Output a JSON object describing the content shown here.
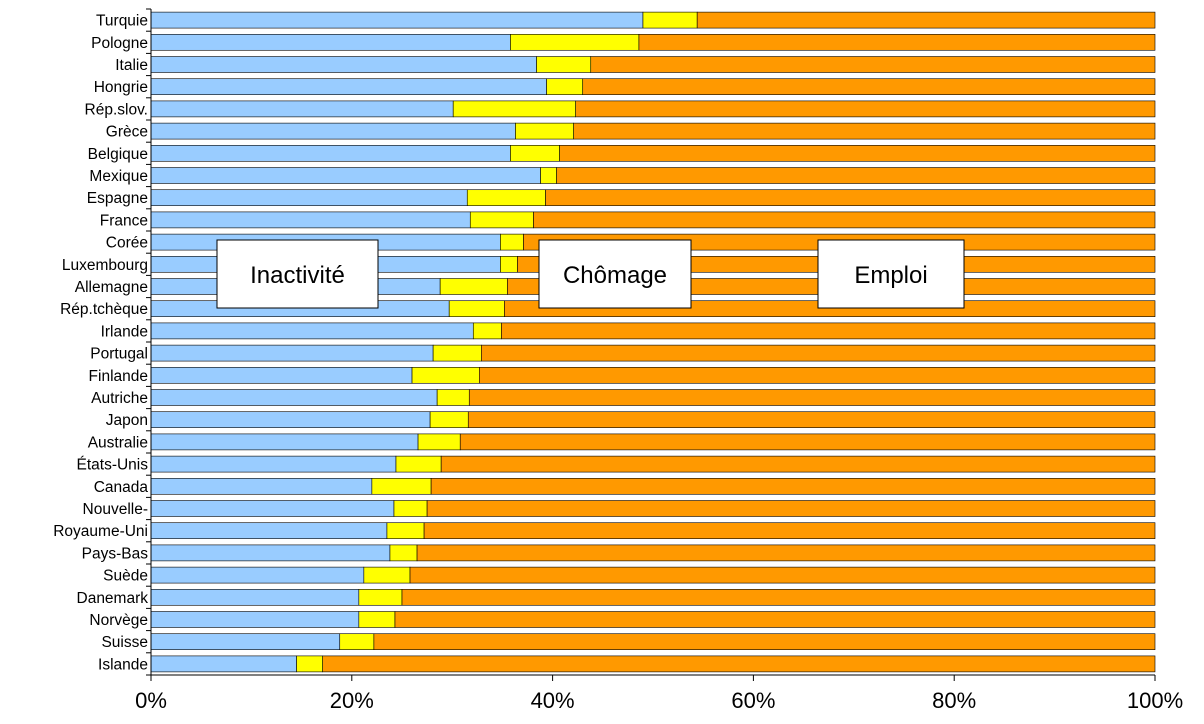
{
  "chart_data": {
    "type": "bar",
    "orientation": "horizontal",
    "stacked": true,
    "percent_stacked": true,
    "categories": [
      "Turquie",
      "Pologne",
      "Italie",
      "Hongrie",
      "Rép.slov.",
      "Grèce",
      "Belgique",
      "Mexique",
      "Espagne",
      "France",
      "Corée",
      "Luxembourg",
      "Allemagne",
      "Rép.tchèque",
      "Irlande",
      "Portugal",
      "Finlande",
      "Autriche",
      "Japon",
      "Australie",
      "États-Unis",
      "Canada",
      "Nouvelle-",
      "Royaume-Uni",
      "Pays-Bas",
      "Suède",
      "Danemark",
      "Norvège",
      "Suisse",
      "Islande"
    ],
    "series": [
      {
        "name": "Inactivité",
        "color": "#99ccff",
        "values": [
          49.0,
          35.8,
          38.4,
          39.4,
          30.1,
          36.3,
          35.8,
          38.8,
          31.5,
          31.8,
          34.8,
          34.8,
          28.8,
          29.7,
          32.1,
          28.1,
          26.0,
          28.5,
          27.8,
          26.6,
          24.4,
          22.0,
          24.2,
          23.5,
          23.8,
          21.2,
          20.7,
          20.7,
          18.8,
          14.5
        ]
      },
      {
        "name": "Chômage",
        "color": "#ffff00",
        "values": [
          5.4,
          12.8,
          5.4,
          3.6,
          12.2,
          5.8,
          4.9,
          1.6,
          7.8,
          6.3,
          2.3,
          1.7,
          6.7,
          5.5,
          2.8,
          4.8,
          6.7,
          3.2,
          3.8,
          4.2,
          4.5,
          5.9,
          3.3,
          3.7,
          2.7,
          4.6,
          4.3,
          3.6,
          3.4,
          2.6
        ]
      },
      {
        "name": "Emploi",
        "color": "#ff9900",
        "values": [
          45.6,
          51.4,
          56.2,
          57.0,
          57.7,
          57.9,
          59.3,
          59.6,
          60.7,
          61.9,
          62.9,
          63.5,
          64.5,
          64.8,
          65.1,
          67.1,
          67.3,
          68.3,
          68.4,
          69.2,
          71.1,
          72.1,
          72.5,
          72.8,
          73.5,
          74.2,
          75.0,
          75.7,
          77.8,
          82.9
        ]
      }
    ],
    "xlim": [
      0,
      100
    ],
    "xticks": [
      "0%",
      "20%",
      "40%",
      "60%",
      "80%",
      "100%"
    ],
    "grid": false,
    "legend": {
      "placement": "inside-middle",
      "labels": [
        "Inactivité",
        "Chômage",
        "Emploi"
      ]
    }
  }
}
